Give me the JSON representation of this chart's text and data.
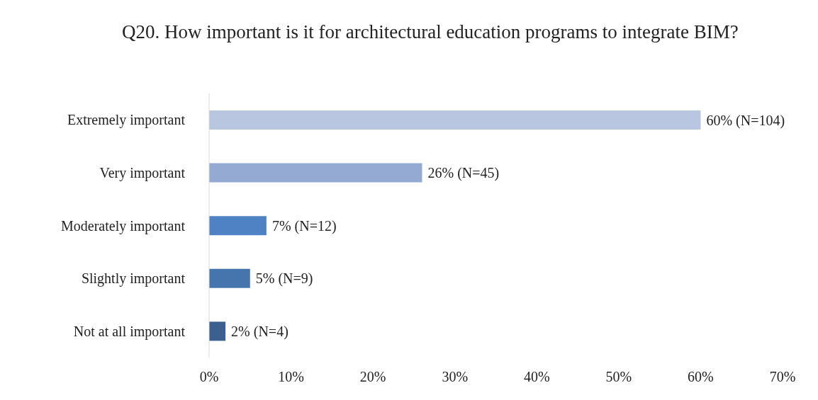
{
  "chart_data": {
    "type": "bar",
    "orientation": "horizontal",
    "title": "Q20. How important is it for architectural education programs to integrate BIM?",
    "categories": [
      "Extremely important",
      "Very important",
      "Moderately important",
      "Slightly important",
      "Not at all important"
    ],
    "values": [
      60,
      26,
      7,
      5,
      2
    ],
    "colors": [
      "#b9c6e0",
      "#95aad2",
      "#4f82c5",
      "#4674ad",
      "#3b5f8e"
    ],
    "value_labels": [
      "60% (N=104)",
      "26% (N=45)",
      "7% (N=12)",
      "5% (N=9)",
      "2% (N=4)"
    ],
    "xlim": [
      0,
      70
    ],
    "xticks": [
      {
        "value": 0,
        "label": "0%"
      },
      {
        "value": 10,
        "label": "10%"
      },
      {
        "value": 20,
        "label": "20%"
      },
      {
        "value": 30,
        "label": "30%"
      },
      {
        "value": 40,
        "label": "40%"
      },
      {
        "value": 50,
        "label": "50%"
      },
      {
        "value": 60,
        "label": "60%"
      },
      {
        "value": 70,
        "label": "70%"
      }
    ],
    "grid": false,
    "legend": false
  }
}
